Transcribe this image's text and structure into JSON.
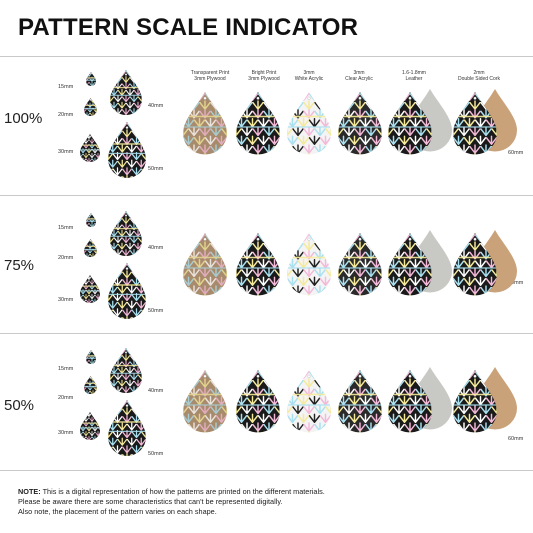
{
  "title": "PATTERN SCALE INDICATOR",
  "materials": [
    {
      "line1": "Transparent Print",
      "line2": "3mm Plywood"
    },
    {
      "line1": "Bright Print",
      "line2": "3mm Plywood"
    },
    {
      "line1": "3mm",
      "line2": "White Acrylic"
    },
    {
      "line1": "3mm",
      "line2": "Clear Acrylic"
    },
    {
      "line1": "1.6-1.8mm",
      "line2": "Leather"
    },
    {
      "line1": "2mm",
      "line2": "Double Sided Cork"
    }
  ],
  "rows": [
    {
      "scale": "100%"
    },
    {
      "scale": "75%"
    },
    {
      "scale": "50%"
    }
  ],
  "sizes": {
    "s15": "15mm",
    "s20": "20mm",
    "s30": "30mm",
    "s40": "40mm",
    "s50": "50mm",
    "s60": "60mm"
  },
  "note": {
    "label": "NOTE:",
    "line1": " This is a digital representation of how the patterns are printed on the different materials.",
    "line2": "Please be aware there are some characteristics that can't be represented digitally.",
    "line3": "Also note, the placement of the pattern varies on each shape."
  },
  "colors": {
    "pattern_bg": "#1a1a1a",
    "wood": "#a88a6c",
    "leather": "#c8c8c4",
    "cork": "#c9a27a",
    "pink": "#f4b8d8",
    "blue": "#a9e0f0",
    "yellow": "#f5ea9a"
  }
}
